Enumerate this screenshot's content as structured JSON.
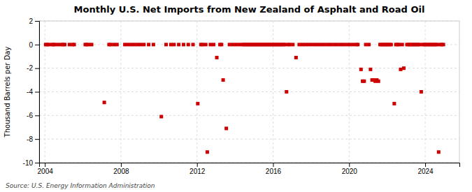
{
  "chart_data": {
    "type": "scatter",
    "title": "Monthly U.S. Net Imports from New Zealand of Asphalt and Road Oil",
    "y_label": "Thousand Barrels per Day",
    "annotations": [
      "Source: U.S. Energy Information Administration"
    ],
    "color": "#cc0000",
    "marker": "square",
    "grid": true,
    "xlim": [
      2003.7,
      2025.8
    ],
    "xticks": [
      2004,
      2008,
      2012,
      2016,
      2020,
      2024
    ],
    "ylim": [
      -10,
      2
    ],
    "yticks": [
      -10,
      -8,
      -6,
      -4,
      -2,
      0,
      2
    ],
    "x": [
      2004.0416666666667,
      2004.125,
      2004.2083333333333,
      2004.375,
      2004.4583333333333,
      2004.5416666666667,
      2004.7083333333333,
      2004.875,
      2004.9583333333333,
      2005.0416666666667,
      2005.2916666666667,
      2005.4583333333333,
      2005.5416666666667,
      2006.125,
      2006.2083333333333,
      2006.2916666666667,
      2006.4583333333333,
      2007.125,
      2007.375,
      2007.4583333333333,
      2007.625,
      2007.7916666666667,
      2008.2083333333333,
      2008.375,
      2008.5416666666667,
      2008.7083333333333,
      2008.875,
      2009.0416666666667,
      2009.2083333333333,
      2009.4583333333333,
      2009.7083333333333,
      2010.125,
      2010.375,
      2010.625,
      2010.7916666666667,
      2011.0416666666667,
      2011.2916666666667,
      2011.5416666666667,
      2011.7916666666667,
      2012.0416666666667,
      2012.2083333333333,
      2012.2916666666667,
      2012.4583333333333,
      2012.5416666666667,
      2012.7083333333333,
      2012.875,
      2013.0416666666667,
      2013.2083333333333,
      2013.2916666666667,
      2013.375,
      2013.5416666666667,
      2013.7083333333333,
      2013.875,
      2014.0416666666667,
      2014.2083333333333,
      2014.375,
      2014.4583333333333,
      2014.5416666666667,
      2014.625,
      2014.7083333333333,
      2014.7916666666667,
      2014.875,
      2014.9583333333333,
      2015.0416666666667,
      2015.125,
      2015.2083333333333,
      2015.2916666666667,
      2015.375,
      2015.4583333333333,
      2015.5416666666667,
      2015.625,
      2015.7083333333333,
      2015.7916666666667,
      2015.875,
      2015.9583333333333,
      2016.0416666666667,
      2016.125,
      2016.2083333333333,
      2016.2916666666667,
      2016.375,
      2016.4583333333333,
      2016.5416666666667,
      2016.625,
      2016.7083333333333,
      2016.7916666666667,
      2016.875,
      2017.0416666666667,
      2017.2083333333333,
      2017.375,
      2017.5416666666667,
      2017.7083333333333,
      2017.875,
      2018.0416666666667,
      2018.2083333333333,
      2018.375,
      2018.5416666666667,
      2018.7083333333333,
      2018.875,
      2019.0416666666667,
      2019.2083333333333,
      2019.375,
      2019.5416666666667,
      2019.7083333333333,
      2019.875,
      2020.0416666666667,
      2020.2083333333333,
      2020.375,
      2020.4583333333333,
      2020.625,
      2020.7083333333333,
      2020.7916666666667,
      2020.875,
      2021.0416666666667,
      2021.125,
      2021.2083333333333,
      2021.2916666666667,
      2021.375,
      2021.4583333333333,
      2021.5416666666667,
      2021.625,
      2021.7083333333333,
      2021.7916666666667,
      2021.875,
      2021.9583333333333,
      2022.0416666666667,
      2022.125,
      2022.2083333333333,
      2022.375,
      2022.4583333333333,
      2022.5416666666667,
      2022.625,
      2022.7083333333333,
      2022.7916666666667,
      2022.875,
      2023.0416666666667,
      2023.125,
      2023.2083333333333,
      2023.2916666666667,
      2023.375,
      2023.4583333333333,
      2023.5416666666667,
      2023.625,
      2023.7083333333333,
      2023.7916666666667,
      2023.875,
      2023.9583333333333,
      2024.0416666666667,
      2024.125,
      2024.2083333333333,
      2024.2916666666667,
      2024.375,
      2024.4583333333333,
      2024.5416666666667,
      2024.625,
      2024.7083333333333,
      2024.7916666666667,
      2024.875,
      2024.9583333333333
    ],
    "values": [
      0,
      0,
      0,
      0,
      0,
      0,
      0,
      0,
      0,
      0,
      0,
      0,
      0,
      0,
      0,
      0,
      0,
      -4.9,
      0,
      0,
      0,
      0,
      0,
      0,
      0,
      0,
      0,
      0,
      0,
      0,
      0,
      -6.1,
      0,
      0,
      0,
      0,
      0,
      0,
      0,
      -5.0,
      0,
      0,
      0,
      -9.1,
      0,
      0,
      -1.1,
      0,
      0,
      -3.0,
      -7.1,
      0,
      0,
      0,
      0,
      0,
      0,
      0,
      0,
      0,
      0,
      0,
      0,
      0,
      0,
      0,
      0,
      0,
      0,
      0,
      0,
      0,
      0,
      0,
      0,
      0,
      0,
      0,
      0,
      0,
      0,
      0,
      0,
      -4.0,
      0,
      0,
      0,
      -1.1,
      0,
      0,
      0,
      0,
      0,
      0,
      0,
      0,
      0,
      0,
      0,
      0,
      0,
      0,
      0,
      0,
      0,
      0,
      0,
      0,
      -2.1,
      -3.1,
      -3.1,
      0,
      0,
      -2.1,
      -3.0,
      -3.0,
      -3.1,
      -3.0,
      -3.1,
      0,
      0,
      0,
      0,
      0,
      0,
      0,
      0,
      -5.0,
      0,
      0,
      0,
      -2.1,
      0,
      -2.0,
      0,
      0,
      0,
      0,
      0,
      0,
      0,
      0,
      0,
      -4.0,
      0,
      0,
      0,
      0,
      0,
      0,
      0,
      0,
      0,
      0,
      -9.1,
      0,
      0,
      0
    ]
  }
}
